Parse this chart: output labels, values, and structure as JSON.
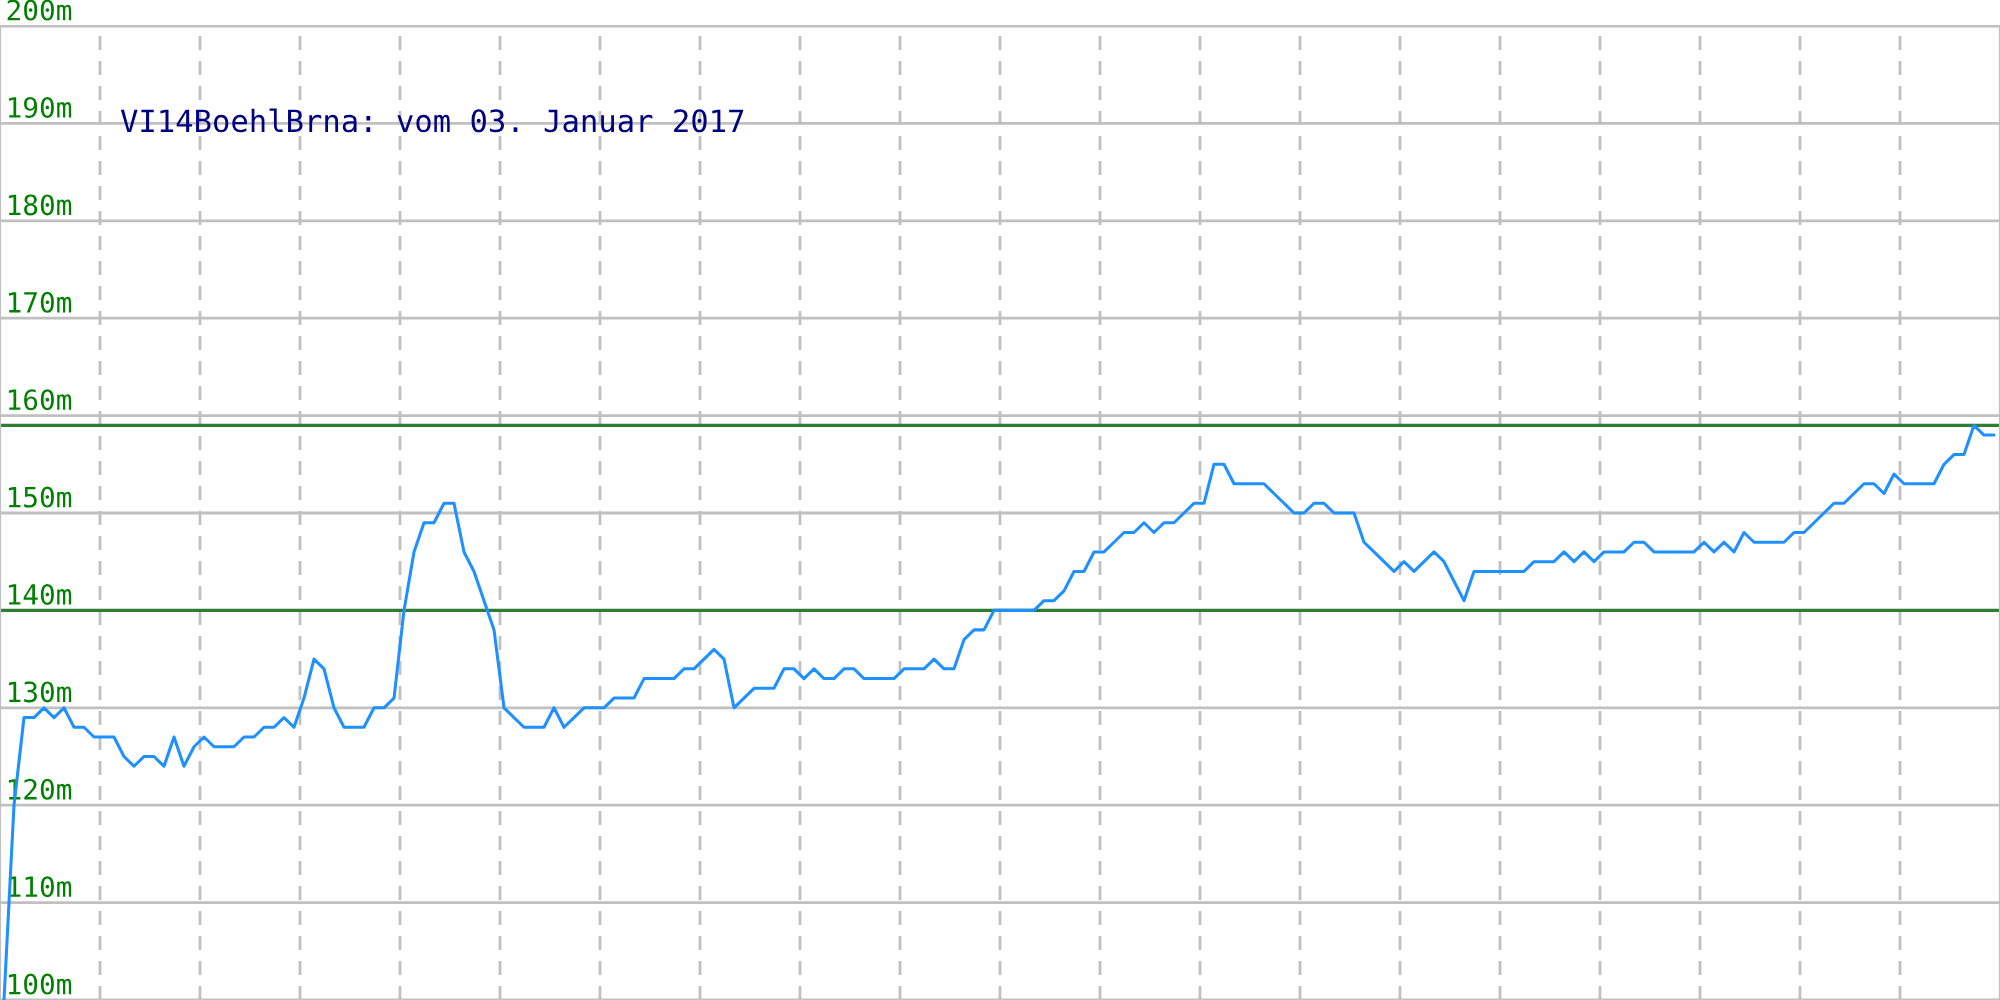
{
  "chart_data": {
    "type": "line",
    "title": "VI14BoehlBrna: vom 03. Januar 2017",
    "categories": [
      null,
      null,
      null,
      null,
      null,
      null,
      null,
      null,
      null,
      null,
      null,
      null,
      null,
      null,
      null,
      null,
      null,
      null,
      null,
      null,
      null,
      null,
      null,
      null,
      null,
      null,
      null,
      null,
      null,
      null,
      null,
      null,
      null,
      null,
      null,
      null,
      null,
      null,
      null,
      null,
      null,
      null,
      null,
      null,
      null,
      null,
      null,
      null,
      null,
      null,
      null,
      null,
      null,
      null,
      null,
      null,
      null,
      null,
      null,
      null,
      null,
      null,
      null,
      null,
      null,
      null,
      null,
      null,
      null,
      null,
      null,
      null,
      null,
      null,
      null,
      null,
      null,
      null,
      null,
      null,
      null,
      null,
      null,
      null,
      null,
      null,
      null,
      null,
      null,
      null,
      null,
      null,
      null,
      null,
      null,
      null,
      null,
      null,
      null,
      null,
      null,
      null,
      null,
      null,
      null,
      null,
      null,
      null,
      null,
      null,
      null,
      null,
      null,
      null,
      null,
      null,
      null,
      null,
      null,
      null,
      null,
      null,
      null,
      null,
      null,
      null,
      null,
      null,
      null,
      null,
      null,
      null,
      null,
      null,
      null,
      null,
      null,
      null,
      null,
      null,
      null,
      null,
      null,
      null,
      null,
      null,
      null,
      null,
      null,
      null,
      null,
      null,
      null,
      null,
      null,
      null,
      null,
      null,
      null,
      null,
      null,
      null,
      null,
      null,
      null,
      null,
      null,
      null,
      null,
      null,
      null,
      null,
      null,
      null,
      null,
      null,
      null,
      null,
      null,
      null,
      null,
      null,
      null,
      null,
      null,
      null,
      null,
      null,
      null,
      null,
      null,
      null,
      null,
      null,
      null,
      null,
      null,
      null,
      null,
      null
    ],
    "ylim": [
      100,
      200
    ],
    "yticks": [
      {
        "value": 100,
        "label": "100m"
      },
      {
        "value": 110,
        "label": "110m"
      },
      {
        "value": 120,
        "label": "120m"
      },
      {
        "value": 130,
        "label": "130m"
      },
      {
        "value": 140,
        "label": "140m"
      },
      {
        "value": 150,
        "label": "150m"
      },
      {
        "value": 160,
        "label": "160m"
      },
      {
        "value": 170,
        "label": "170m"
      },
      {
        "value": 180,
        "label": "180m"
      },
      {
        "value": 190,
        "label": "190m"
      },
      {
        "value": 200,
        "label": "200m"
      }
    ],
    "grid": true,
    "ref_lines": [
      {
        "axis": "y",
        "value": 140,
        "color": "#2e7d32"
      },
      {
        "axis": "y",
        "value": 159,
        "color": "#2e7d32"
      }
    ],
    "series": [
      {
        "color": "#1e90ff",
        "values": [
          100,
          120,
          129,
          129,
          130,
          129,
          130,
          128,
          128,
          127,
          127,
          127,
          125,
          124,
          125,
          125,
          124,
          127,
          124,
          126,
          127,
          126,
          126,
          126,
          127,
          127,
          128,
          128,
          129,
          128,
          131,
          135,
          134,
          130,
          128,
          128,
          128,
          130,
          130,
          131,
          140,
          146,
          149,
          149,
          151,
          151,
          146,
          144,
          141,
          138,
          130,
          129,
          128,
          128,
          128,
          130,
          128,
          129,
          130,
          130,
          130,
          131,
          131,
          131,
          133,
          133,
          133,
          133,
          134,
          134,
          135,
          136,
          135,
          130,
          131,
          132,
          132,
          132,
          134,
          134,
          133,
          134,
          133,
          133,
          134,
          134,
          133,
          133,
          133,
          133,
          134,
          134,
          134,
          135,
          134,
          134,
          137,
          138,
          138,
          140,
          140,
          140,
          140,
          140,
          141,
          141,
          142,
          144,
          144,
          146,
          146,
          147,
          148,
          148,
          149,
          148,
          149,
          149,
          150,
          151,
          151,
          155,
          155,
          153,
          153,
          153,
          153,
          152,
          151,
          150,
          150,
          151,
          151,
          150,
          150,
          150,
          147,
          146,
          145,
          144,
          145,
          144,
          145,
          146,
          145,
          143,
          141,
          144,
          144,
          144,
          144,
          144,
          144,
          145,
          145,
          145,
          146,
          145,
          146,
          145,
          146,
          146,
          146,
          147,
          147,
          146,
          146,
          146,
          146,
          146,
          147,
          146,
          147,
          146,
          148,
          147,
          147,
          147,
          147,
          148,
          148,
          149,
          150,
          151,
          151,
          152,
          153,
          153,
          152,
          154,
          153,
          153,
          153,
          153,
          155,
          156,
          156,
          159,
          158,
          158
        ]
      }
    ]
  }
}
